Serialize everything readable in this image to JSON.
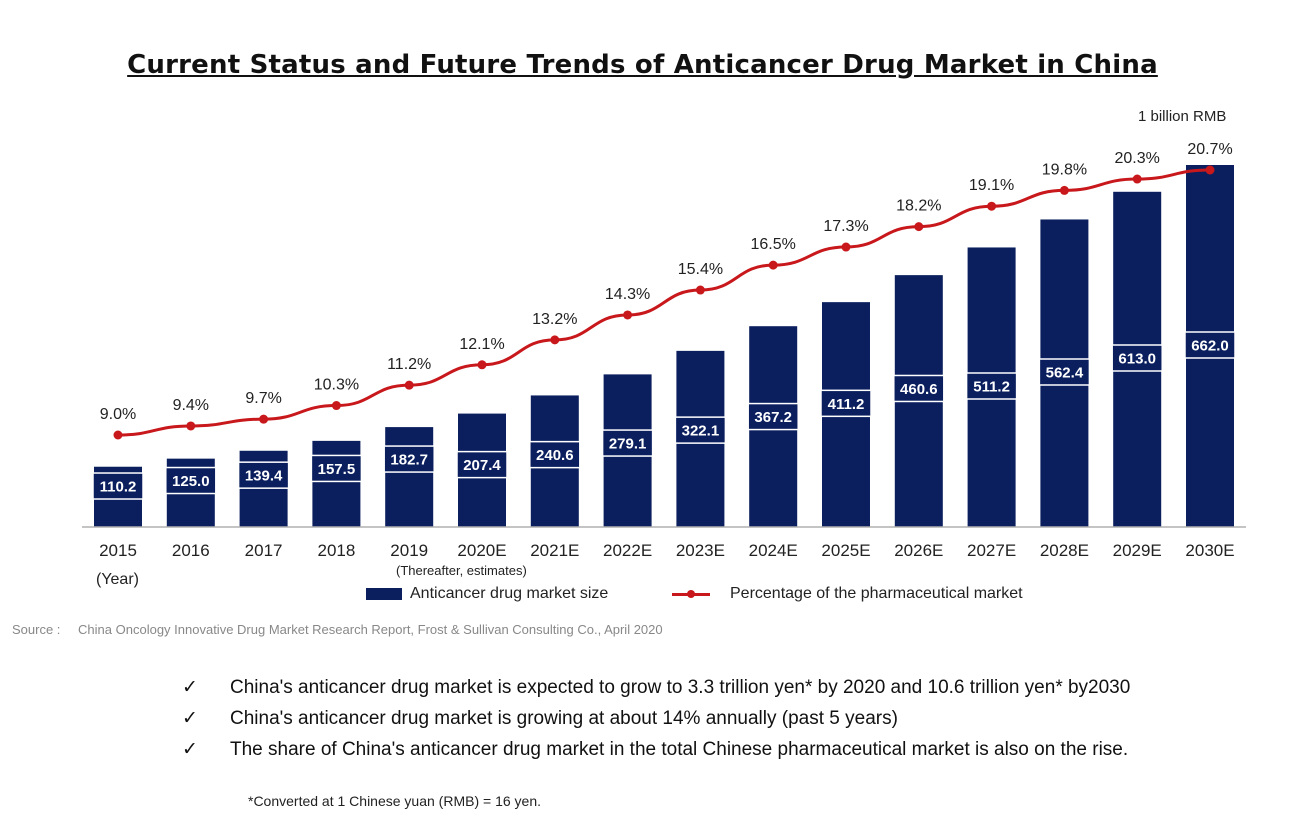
{
  "page": {
    "title": "Current Status and Future Trends of Anticancer Drug Market in China",
    "unit": "1 billion RMB",
    "year_label": "(Year)",
    "thereafter_note": "(Thereafter, estimates)",
    "source_label": "Source :",
    "source_text": "China Oncology Innovative Drug Market Research Report,  Frost & Sullivan Consulting Co., April 2020",
    "check_icon": "✓",
    "bullets": [
      "China's anticancer drug market is expected to grow to 3.3 trillion yen* by 2020 and 10.6 trillion yen* by2030",
      "China's anticancer drug market is growing at about 14% annually (past 5 years)",
      "The share of China's anticancer drug market in the total Chinese pharmaceutical market is also on the rise."
    ],
    "footnote": "*Converted at 1 Chinese yuan (RMB) = 16 yen."
  },
  "chart_data": {
    "type": "bar",
    "categories": [
      "2015",
      "2016",
      "2017",
      "2018",
      "2019",
      "2020E",
      "2021E",
      "2022E",
      "2023E",
      "2024E",
      "2025E",
      "2026E",
      "2027E",
      "2028E",
      "2029E",
      "2030E"
    ],
    "series": [
      {
        "name": "Anticancer drug market size",
        "type": "bar",
        "color": "#0b1f5e",
        "values": [
          110.2,
          125.0,
          139.4,
          157.5,
          182.7,
          207.4,
          240.6,
          279.1,
          322.1,
          367.2,
          411.2,
          460.6,
          511.2,
          562.4,
          613.0,
          662.0
        ],
        "labels": [
          "110.2",
          "125.0",
          "139.4",
          "157.5",
          "182.7",
          "207.4",
          "240.6",
          "279.1",
          "322.1",
          "367.2",
          "411.2",
          "460.6",
          "511.2",
          "562.4",
          "613.0",
          "662.0"
        ]
      },
      {
        "name": "Percentage of the pharmaceutical market",
        "type": "line",
        "color": "#c8181c",
        "values": [
          9.0,
          9.4,
          9.7,
          10.3,
          11.2,
          12.1,
          13.2,
          14.3,
          15.4,
          16.5,
          17.3,
          18.2,
          19.1,
          19.8,
          20.3,
          20.7
        ],
        "labels": [
          "9.0%",
          "9.4%",
          "9.7%",
          "10.3%",
          "11.2%",
          "12.1%",
          "13.2%",
          "14.3%",
          "15.4%",
          "16.5%",
          "17.3%",
          "18.2%",
          "19.1%",
          "19.8%",
          "20.3%",
          "20.7%"
        ]
      }
    ],
    "title": "Current Status and Future Trends of Anticancer Drug Market in China",
    "xlabel": "(Year)",
    "ylabel": "1 billion RMB",
    "ylim": [
      0,
      662
    ],
    "y2lim": [
      0,
      21
    ],
    "legend": "bottom"
  }
}
